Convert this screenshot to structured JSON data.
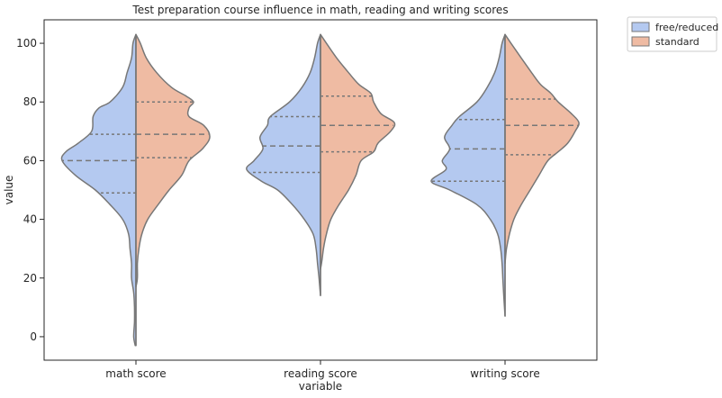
{
  "chart_data": {
    "type": "violin",
    "title": "Test preparation course influence in math, reading and writing scores",
    "xlabel": "variable",
    "ylabel": "value",
    "ylim": [
      -8,
      108
    ],
    "yticks": [
      0,
      20,
      40,
      60,
      80,
      100
    ],
    "categories": [
      "math score",
      "reading score",
      "writing score"
    ],
    "legend": {
      "placement": "outside-top-right",
      "entries": [
        "free/reduced",
        "standard"
      ]
    },
    "colors": {
      "free/reduced": "#b4c9f0",
      "standard": "#efbba3",
      "outline": "#777777"
    },
    "series": [
      {
        "name": "free/reduced",
        "violins": [
          {
            "category": "math score",
            "quartiles": [
              49,
              60,
              69
            ],
            "profile": [
              [
                -3,
                0.01
              ],
              [
                0,
                0.03
              ],
              [
                5,
                0.02
              ],
              [
                10,
                0.02
              ],
              [
                15,
                0.03
              ],
              [
                20,
                0.06
              ],
              [
                25,
                0.06
              ],
              [
                30,
                0.08
              ],
              [
                35,
                0.1
              ],
              [
                40,
                0.18
              ],
              [
                45,
                0.35
              ],
              [
                50,
                0.55
              ],
              [
                55,
                0.82
              ],
              [
                60,
                1.0
              ],
              [
                63,
                0.95
              ],
              [
                66,
                0.78
              ],
              [
                70,
                0.6
              ],
              [
                75,
                0.58
              ],
              [
                78,
                0.5
              ],
              [
                80,
                0.35
              ],
              [
                85,
                0.18
              ],
              [
                90,
                0.12
              ],
              [
                95,
                0.06
              ],
              [
                100,
                0.04
              ],
              [
                103,
                0.0
              ]
            ]
          },
          {
            "category": "reading score",
            "quartiles": [
              56,
              65,
              75
            ],
            "profile": [
              [
                14,
                0.0
              ],
              [
                20,
                0.02
              ],
              [
                25,
                0.04
              ],
              [
                30,
                0.06
              ],
              [
                35,
                0.1
              ],
              [
                40,
                0.22
              ],
              [
                45,
                0.38
              ],
              [
                50,
                0.58
              ],
              [
                53,
                0.8
              ],
              [
                57,
                1.0
              ],
              [
                60,
                0.9
              ],
              [
                64,
                0.78
              ],
              [
                68,
                0.82
              ],
              [
                72,
                0.72
              ],
              [
                75,
                0.68
              ],
              [
                80,
                0.42
              ],
              [
                85,
                0.25
              ],
              [
                90,
                0.14
              ],
              [
                95,
                0.08
              ],
              [
                100,
                0.04
              ],
              [
                103,
                0.0
              ]
            ]
          },
          {
            "category": "writing score",
            "quartiles": [
              53,
              64,
              74
            ],
            "profile": [
              [
                7,
                0.0
              ],
              [
                15,
                0.02
              ],
              [
                20,
                0.03
              ],
              [
                25,
                0.04
              ],
              [
                30,
                0.06
              ],
              [
                35,
                0.1
              ],
              [
                40,
                0.2
              ],
              [
                45,
                0.38
              ],
              [
                50,
                0.75
              ],
              [
                53,
                1.0
              ],
              [
                57,
                0.8
              ],
              [
                60,
                0.85
              ],
              [
                64,
                0.75
              ],
              [
                68,
                0.82
              ],
              [
                72,
                0.72
              ],
              [
                75,
                0.62
              ],
              [
                80,
                0.38
              ],
              [
                85,
                0.24
              ],
              [
                90,
                0.14
              ],
              [
                95,
                0.08
              ],
              [
                100,
                0.04
              ],
              [
                103,
                0.0
              ]
            ]
          }
        ]
      },
      {
        "name": "standard",
        "violins": [
          {
            "category": "math score",
            "quartiles": [
              61,
              69,
              80
            ],
            "profile": [
              [
                17,
                0.0
              ],
              [
                20,
                0.02
              ],
              [
                25,
                0.02
              ],
              [
                30,
                0.04
              ],
              [
                35,
                0.08
              ],
              [
                40,
                0.16
              ],
              [
                45,
                0.3
              ],
              [
                50,
                0.45
              ],
              [
                55,
                0.62
              ],
              [
                60,
                0.72
              ],
              [
                64,
                0.9
              ],
              [
                68,
                1.0
              ],
              [
                72,
                0.92
              ],
              [
                75,
                0.72
              ],
              [
                78,
                0.72
              ],
              [
                80,
                0.78
              ],
              [
                82,
                0.68
              ],
              [
                85,
                0.48
              ],
              [
                90,
                0.28
              ],
              [
                95,
                0.14
              ],
              [
                100,
                0.06
              ],
              [
                103,
                0.0
              ]
            ]
          },
          {
            "category": "reading score",
            "quartiles": [
              63,
              72,
              82
            ],
            "profile": [
              [
                23,
                0.0
              ],
              [
                26,
                0.02
              ],
              [
                30,
                0.04
              ],
              [
                35,
                0.08
              ],
              [
                40,
                0.14
              ],
              [
                45,
                0.25
              ],
              [
                50,
                0.38
              ],
              [
                55,
                0.48
              ],
              [
                60,
                0.55
              ],
              [
                63,
                0.72
              ],
              [
                66,
                0.78
              ],
              [
                70,
                0.95
              ],
              [
                73,
                1.0
              ],
              [
                76,
                0.82
              ],
              [
                80,
                0.72
              ],
              [
                83,
                0.68
              ],
              [
                86,
                0.52
              ],
              [
                90,
                0.38
              ],
              [
                95,
                0.22
              ],
              [
                100,
                0.08
              ],
              [
                103,
                0.0
              ]
            ]
          },
          {
            "category": "writing score",
            "quartiles": [
              62,
              72,
              81
            ],
            "profile": [
              [
                25,
                0.0
              ],
              [
                30,
                0.02
              ],
              [
                35,
                0.06
              ],
              [
                40,
                0.12
              ],
              [
                45,
                0.22
              ],
              [
                50,
                0.34
              ],
              [
                55,
                0.46
              ],
              [
                60,
                0.58
              ],
              [
                63,
                0.72
              ],
              [
                66,
                0.85
              ],
              [
                70,
                0.95
              ],
              [
                73,
                1.0
              ],
              [
                76,
                0.9
              ],
              [
                80,
                0.72
              ],
              [
                83,
                0.62
              ],
              [
                86,
                0.48
              ],
              [
                90,
                0.36
              ],
              [
                95,
                0.22
              ],
              [
                100,
                0.08
              ],
              [
                103,
                0.0
              ]
            ]
          }
        ]
      }
    ]
  }
}
